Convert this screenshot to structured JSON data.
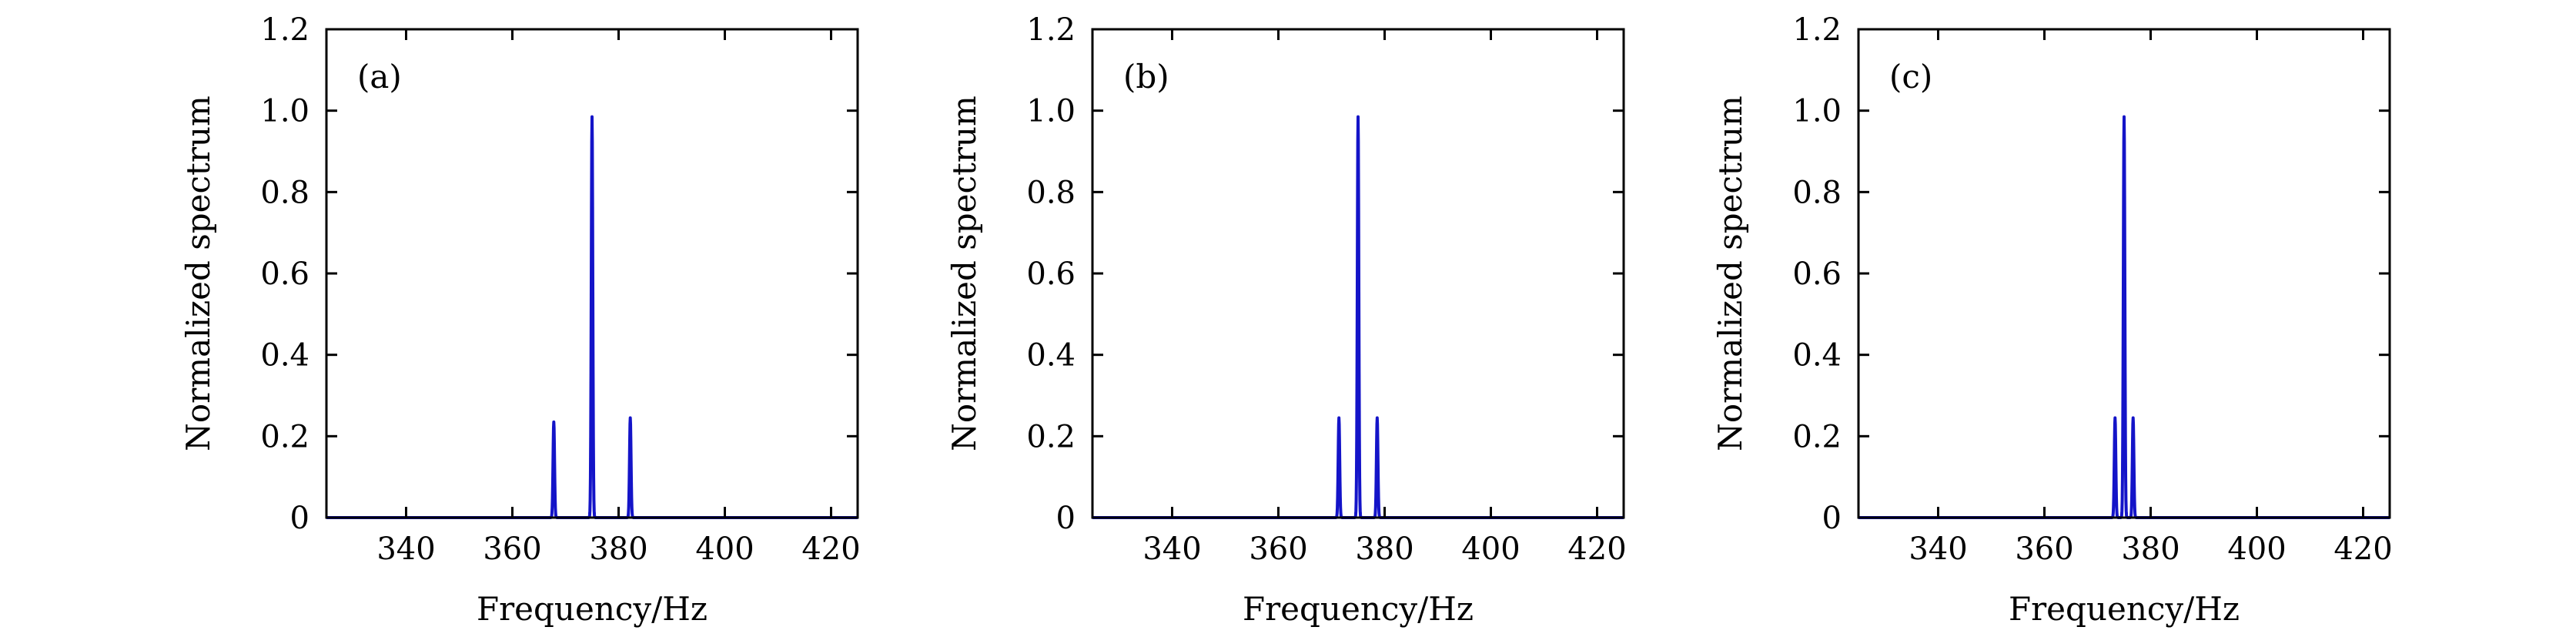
{
  "chart_data": [
    {
      "type": "line",
      "panel_label": "(a)",
      "xlabel": "Frequency/Hz",
      "ylabel": "Normalized spectrum",
      "xlim": [
        325,
        425
      ],
      "ylim": [
        0,
        1.2
      ],
      "xticks": [
        340,
        360,
        380,
        400,
        420
      ],
      "yticks": [
        0,
        0.2,
        0.4,
        0.6,
        0.8,
        1.0,
        1.2
      ],
      "ytick_labels": [
        "0",
        "0.2",
        "0.4",
        "0.6",
        "0.8",
        "1.0",
        "1.2"
      ],
      "grid": false,
      "color": "#1414c8",
      "peaks": [
        {
          "x": 367.8,
          "y": 0.235
        },
        {
          "x": 375.0,
          "y": 0.985
        },
        {
          "x": 382.2,
          "y": 0.245
        }
      ]
    },
    {
      "type": "line",
      "panel_label": "(b)",
      "xlabel": "Frequency/Hz",
      "ylabel": "Normalized spectrum",
      "xlim": [
        325,
        425
      ],
      "ylim": [
        0,
        1.2
      ],
      "xticks": [
        340,
        360,
        380,
        400,
        420
      ],
      "yticks": [
        0,
        0.2,
        0.4,
        0.6,
        0.8,
        1.0,
        1.2
      ],
      "ytick_labels": [
        "0",
        "0.2",
        "0.4",
        "0.6",
        "0.8",
        "1.0",
        "1.2"
      ],
      "grid": false,
      "color": "#1414c8",
      "peaks": [
        {
          "x": 371.4,
          "y": 0.245
        },
        {
          "x": 375.0,
          "y": 0.985
        },
        {
          "x": 378.6,
          "y": 0.245
        }
      ]
    },
    {
      "type": "line",
      "panel_label": "(c)",
      "xlabel": "Frequency/Hz",
      "ylabel": "Normalized spectrum",
      "xlim": [
        325,
        425
      ],
      "ylim": [
        0,
        1.2
      ],
      "xticks": [
        340,
        360,
        380,
        400,
        420
      ],
      "yticks": [
        0,
        0.2,
        0.4,
        0.6,
        0.8,
        1.0,
        1.2
      ],
      "ytick_labels": [
        "0",
        "0.2",
        "0.4",
        "0.6",
        "0.8",
        "1.0",
        "1.2"
      ],
      "grid": false,
      "color": "#1414c8",
      "peaks": [
        {
          "x": 373.3,
          "y": 0.245
        },
        {
          "x": 375.0,
          "y": 0.985
        },
        {
          "x": 376.7,
          "y": 0.245
        }
      ]
    }
  ]
}
